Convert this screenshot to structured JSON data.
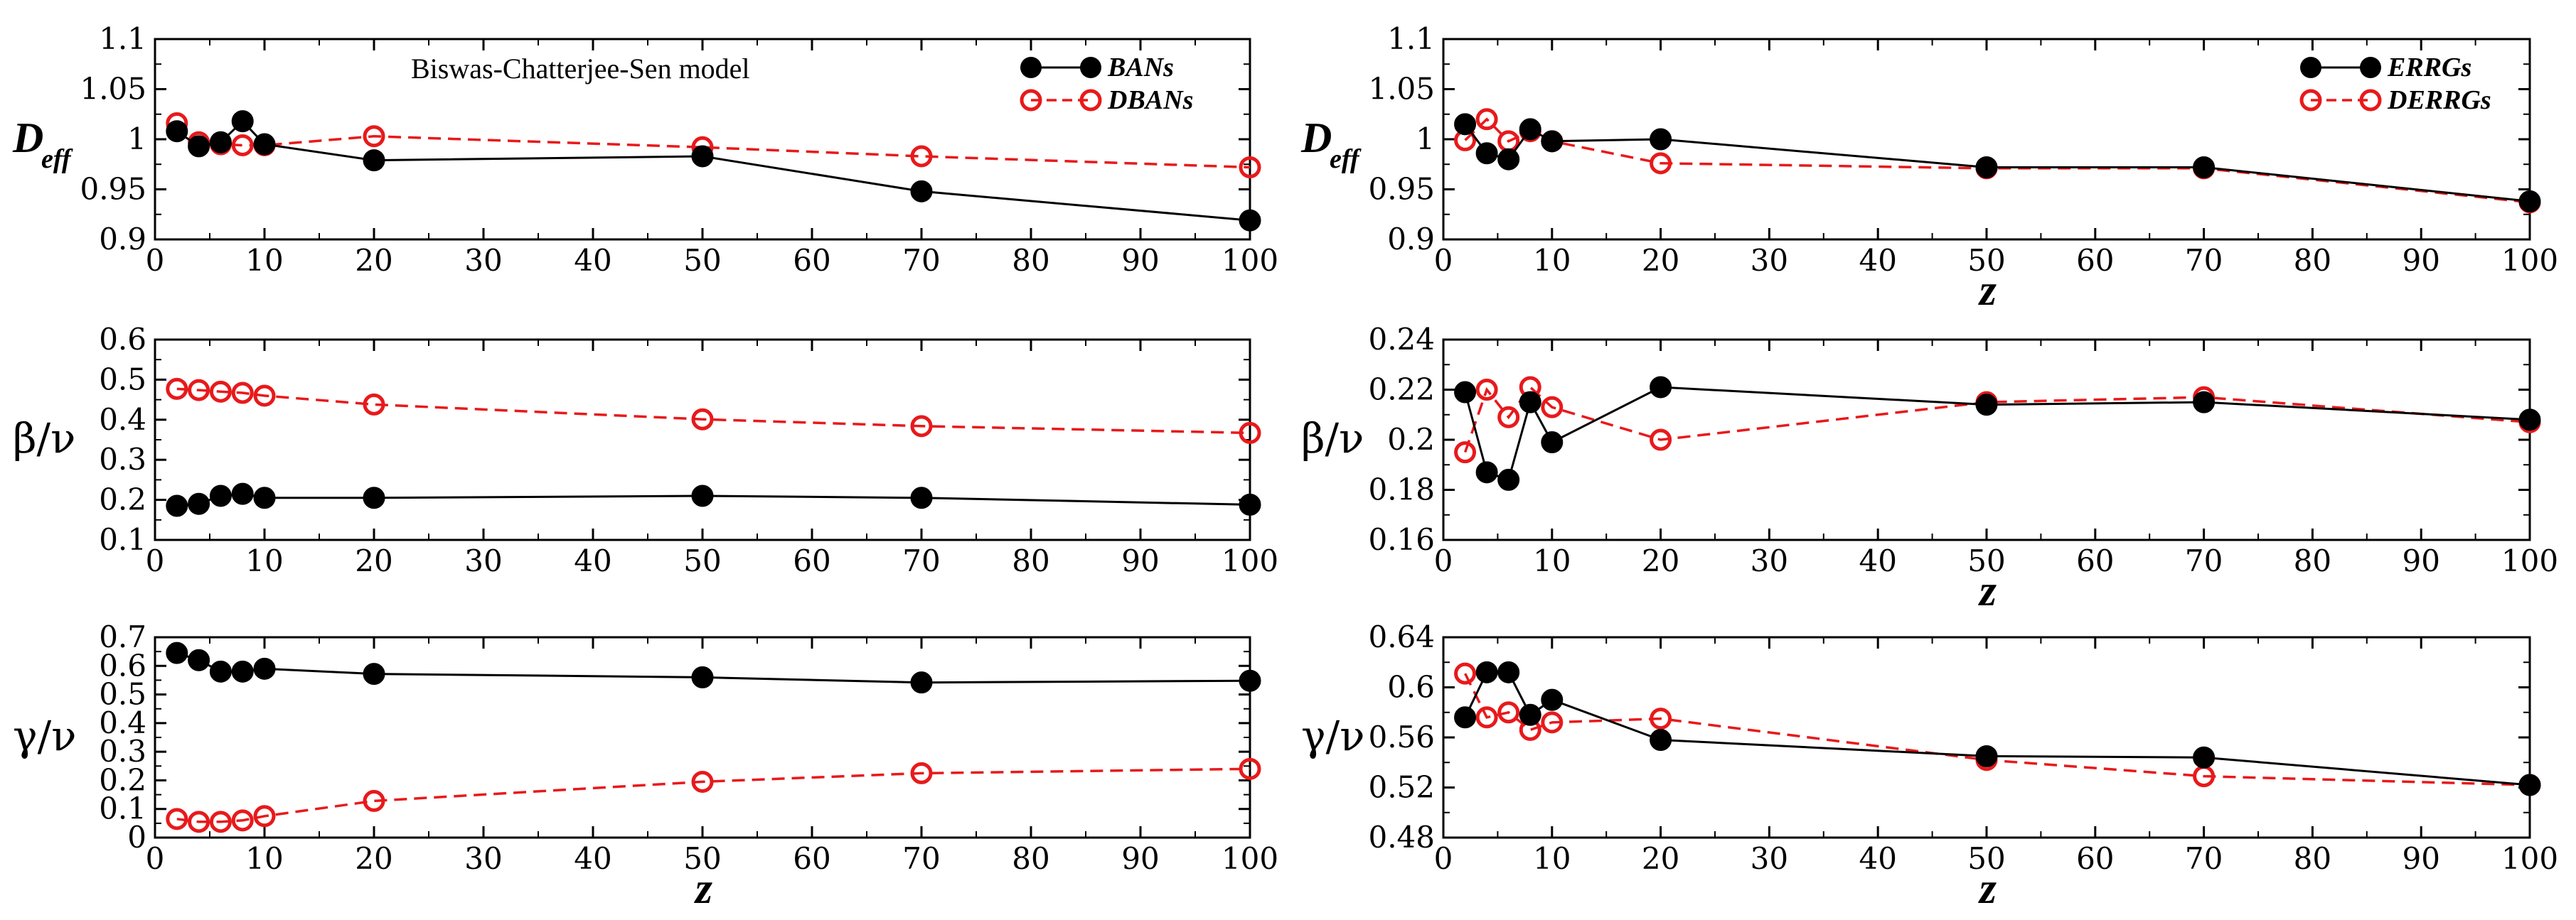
{
  "chart_data": [
    {
      "type": "line",
      "id": "ban-deff",
      "ylabel": "D",
      "ylabel_sub": "eff",
      "xlabel": "",
      "ylim": [
        0.9,
        1.1
      ],
      "yticks": [
        0.9,
        0.95,
        1,
        1.05,
        1.1
      ],
      "ytick_labels": [
        "0.9",
        "0.95",
        "1",
        "1.05",
        "1.1"
      ],
      "xlim": [
        0,
        100
      ],
      "xticks": [
        0,
        10,
        20,
        30,
        40,
        50,
        60,
        70,
        80,
        90,
        100
      ],
      "xtick_labels": [
        "0",
        "10",
        "20",
        "30",
        "40",
        "50",
        "60",
        "70",
        "80",
        "90",
        "100"
      ],
      "x": [
        2,
        4,
        6,
        8,
        10,
        20,
        50,
        70,
        100
      ],
      "annotation": "Biswas-Chatterjee-Sen model",
      "legend": [
        "BANs",
        "DBANs"
      ],
      "legend_position": "top-right",
      "series": [
        {
          "name": "BANs",
          "style": "solid-filled",
          "values": [
            1.008,
            0.993,
            0.997,
            1.018,
            0.995,
            0.979,
            0.983,
            0.948,
            0.919
          ]
        },
        {
          "name": "DBANs",
          "style": "dashed-open",
          "values": [
            1.016,
            0.997,
            0.995,
            0.994,
            0.994,
            1.003,
            0.992,
            0.983,
            0.972
          ]
        }
      ]
    },
    {
      "type": "line",
      "id": "ban-beta",
      "ylabel": "β/ν",
      "xlabel": "",
      "ylim": [
        0.1,
        0.6
      ],
      "yticks": [
        0.1,
        0.2,
        0.3,
        0.4,
        0.5,
        0.6
      ],
      "ytick_labels": [
        "0.1",
        "0.2",
        "0.3",
        "0.4",
        "0.5",
        "0.6"
      ],
      "xlim": [
        0,
        100
      ],
      "xticks": [
        0,
        10,
        20,
        30,
        40,
        50,
        60,
        70,
        80,
        90,
        100
      ],
      "xtick_labels": [
        "0",
        "10",
        "20",
        "30",
        "40",
        "50",
        "60",
        "70",
        "80",
        "90",
        "100"
      ],
      "x": [
        2,
        4,
        6,
        8,
        10,
        20,
        50,
        70,
        100
      ],
      "series": [
        {
          "name": "BANs",
          "style": "solid-filled",
          "values": [
            0.185,
            0.19,
            0.21,
            0.215,
            0.205,
            0.205,
            0.21,
            0.205,
            0.188
          ]
        },
        {
          "name": "DBANs",
          "style": "dashed-open",
          "values": [
            0.477,
            0.474,
            0.47,
            0.467,
            0.46,
            0.438,
            0.401,
            0.384,
            0.367
          ]
        }
      ]
    },
    {
      "type": "line",
      "id": "ban-gamma",
      "ylabel": "γ/ν",
      "xlabel": "z",
      "ylim": [
        0,
        0.7
      ],
      "yticks": [
        0,
        0.1,
        0.2,
        0.3,
        0.4,
        0.5,
        0.6,
        0.7
      ],
      "ytick_labels": [
        "0",
        "0.1",
        "0.2",
        "0.3",
        "0.4",
        "0.5",
        "0.6",
        "0.7"
      ],
      "xlim": [
        0,
        100
      ],
      "xticks": [
        0,
        10,
        20,
        30,
        40,
        50,
        60,
        70,
        80,
        90,
        100
      ],
      "xtick_labels": [
        "0",
        "10",
        "20",
        "30",
        "40",
        "50",
        "60",
        "70",
        "80",
        "90",
        "100"
      ],
      "x": [
        2,
        4,
        6,
        8,
        10,
        20,
        50,
        70,
        100
      ],
      "series": [
        {
          "name": "BANs",
          "style": "solid-filled",
          "values": [
            0.645,
            0.62,
            0.58,
            0.58,
            0.59,
            0.572,
            0.56,
            0.542,
            0.548
          ]
        },
        {
          "name": "DBANs",
          "style": "dashed-open",
          "values": [
            0.065,
            0.055,
            0.055,
            0.06,
            0.075,
            0.128,
            0.195,
            0.225,
            0.24
          ]
        }
      ]
    },
    {
      "type": "line",
      "id": "er-deff",
      "ylabel": "D",
      "ylabel_sub": "eff",
      "xlabel": "z",
      "ylim": [
        0.9,
        1.1
      ],
      "yticks": [
        0.9,
        0.95,
        1,
        1.05,
        1.1
      ],
      "ytick_labels": [
        "0.9",
        "0.95",
        "1",
        "1.05",
        "1.1"
      ],
      "xlim": [
        0,
        100
      ],
      "xticks": [
        0,
        10,
        20,
        30,
        40,
        50,
        60,
        70,
        80,
        90,
        100
      ],
      "xtick_labels": [
        "0",
        "10",
        "20",
        "30",
        "40",
        "50",
        "60",
        "70",
        "80",
        "90",
        "100"
      ],
      "x": [
        2,
        4,
        6,
        8,
        10,
        20,
        50,
        70,
        100
      ],
      "legend": [
        "ERRGs",
        "DERRGs"
      ],
      "legend_position": "top-right",
      "series": [
        {
          "name": "ERRGs",
          "style": "solid-filled",
          "values": [
            1.015,
            0.986,
            0.98,
            1.01,
            0.998,
            1.0,
            0.972,
            0.972,
            0.938
          ]
        },
        {
          "name": "DERRGs",
          "style": "dashed-open",
          "values": [
            0.999,
            1.02,
            0.998,
            1.008,
            0.998,
            0.976,
            0.971,
            0.971,
            0.937
          ]
        }
      ]
    },
    {
      "type": "line",
      "id": "er-beta",
      "ylabel": "β/ν",
      "xlabel": "z",
      "ylim": [
        0.16,
        0.24
      ],
      "yticks": [
        0.16,
        0.18,
        0.2,
        0.22,
        0.24
      ],
      "ytick_labels": [
        "0.16",
        "0.18",
        "0.2",
        "0.22",
        "0.24"
      ],
      "xlim": [
        0,
        100
      ],
      "xticks": [
        0,
        10,
        20,
        30,
        40,
        50,
        60,
        70,
        80,
        90,
        100
      ],
      "xtick_labels": [
        "0",
        "10",
        "20",
        "30",
        "40",
        "50",
        "60",
        "70",
        "80",
        "90",
        "100"
      ],
      "x": [
        2,
        4,
        6,
        8,
        10,
        20,
        50,
        70,
        100
      ],
      "series": [
        {
          "name": "ERRGs",
          "style": "solid-filled",
          "values": [
            0.219,
            0.187,
            0.184,
            0.215,
            0.199,
            0.221,
            0.214,
            0.215,
            0.208
          ]
        },
        {
          "name": "DERRGs",
          "style": "dashed-open",
          "values": [
            0.195,
            0.22,
            0.209,
            0.221,
            0.213,
            0.2,
            0.215,
            0.217,
            0.207
          ]
        }
      ]
    },
    {
      "type": "line",
      "id": "er-gamma",
      "ylabel": "γ/ν",
      "xlabel": "z",
      "ylim": [
        0.48,
        0.64
      ],
      "yticks": [
        0.48,
        0.52,
        0.56,
        0.6,
        0.64
      ],
      "ytick_labels": [
        "0.48",
        "0.52",
        "0.56",
        "0.6",
        "0.64"
      ],
      "xlim": [
        0,
        100
      ],
      "xticks": [
        0,
        10,
        20,
        30,
        40,
        50,
        60,
        70,
        80,
        90,
        100
      ],
      "xtick_labels": [
        "0",
        "10",
        "20",
        "30",
        "40",
        "50",
        "60",
        "70",
        "80",
        "90",
        "100"
      ],
      "x": [
        2,
        4,
        6,
        8,
        10,
        20,
        50,
        70,
        100
      ],
      "series": [
        {
          "name": "ERRGs",
          "style": "solid-filled",
          "values": [
            0.576,
            0.612,
            0.612,
            0.578,
            0.59,
            0.558,
            0.545,
            0.544,
            0.522
          ]
        },
        {
          "name": "DERRGs",
          "style": "dashed-open",
          "values": [
            0.611,
            0.576,
            0.58,
            0.566,
            0.572,
            0.575,
            0.542,
            0.529,
            0.522
          ]
        }
      ]
    }
  ],
  "colors": {
    "series_solid": "#000000",
    "series_dashed": "#e8191b",
    "axis": "#000000"
  }
}
